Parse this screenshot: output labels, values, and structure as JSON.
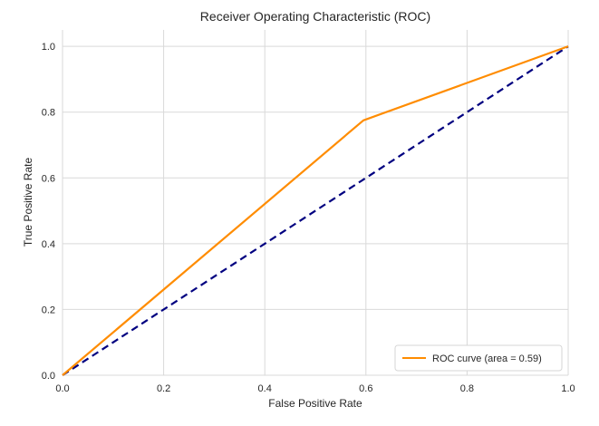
{
  "chart_data": {
    "type": "line",
    "title": "Receiver Operating Characteristic (ROC)",
    "xlabel": "False Positive Rate",
    "ylabel": "True Positive Rate",
    "xlim": [
      0.0,
      1.0
    ],
    "ylim": [
      0.0,
      1.05
    ],
    "xticks": [
      "0.0",
      "0.2",
      "0.4",
      "0.6",
      "0.8",
      "1.0"
    ],
    "yticks": [
      "0.0",
      "0.2",
      "0.4",
      "0.6",
      "0.8",
      "1.0"
    ],
    "grid": true,
    "legend_position": "lower right",
    "series": [
      {
        "name": "ROC curve (area = 0.59)",
        "color": "#ff8c00",
        "style": "solid",
        "x": [
          0.0,
          0.595,
          1.0
        ],
        "y": [
          0.0,
          0.775,
          1.0
        ]
      },
      {
        "color": "#000080",
        "style": "dashed",
        "x": [
          0.0,
          1.0
        ],
        "y": [
          0.0,
          1.0
        ]
      }
    ]
  }
}
